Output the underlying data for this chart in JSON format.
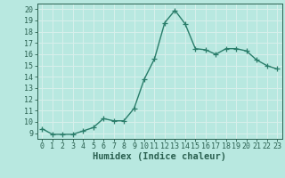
{
  "x": [
    0,
    1,
    2,
    3,
    4,
    5,
    6,
    7,
    8,
    9,
    10,
    11,
    12,
    13,
    14,
    15,
    16,
    17,
    18,
    19,
    20,
    21,
    22,
    23
  ],
  "y": [
    9.4,
    8.9,
    8.9,
    8.9,
    9.2,
    9.5,
    10.3,
    10.1,
    10.1,
    11.2,
    13.8,
    15.6,
    18.8,
    19.9,
    18.7,
    16.5,
    16.4,
    16.0,
    16.5,
    16.5,
    16.3,
    15.5,
    15.0,
    14.7
  ],
  "line_color": "#2a7d6a",
  "marker": "+",
  "marker_size": 4,
  "marker_lw": 0.9,
  "bg_color": "#b8e8e0",
  "grid_color": "#d8f0ec",
  "xlabel": "Humidex (Indice chaleur)",
  "ylim": [
    8.5,
    20.5
  ],
  "xlim": [
    -0.5,
    23.5
  ],
  "yticks": [
    9,
    10,
    11,
    12,
    13,
    14,
    15,
    16,
    17,
    18,
    19,
    20
  ],
  "xticks": [
    0,
    1,
    2,
    3,
    4,
    5,
    6,
    7,
    8,
    9,
    10,
    11,
    12,
    13,
    14,
    15,
    16,
    17,
    18,
    19,
    20,
    21,
    22,
    23
  ],
  "label_color": "#2a6050",
  "tick_color": "#2a6050",
  "font_family": "monospace",
  "xlabel_fontsize": 7.5,
  "tick_fontsize": 6.0,
  "line_width": 1.0
}
